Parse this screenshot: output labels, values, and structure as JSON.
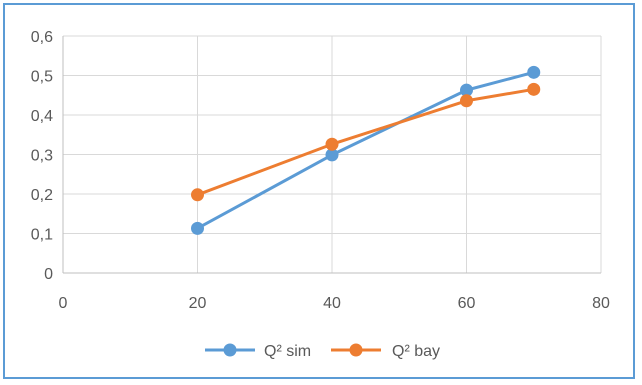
{
  "chart_data": {
    "type": "line",
    "title": "",
    "xlabel": "",
    "ylabel": "",
    "xlim": [
      0,
      80
    ],
    "ylim": [
      0,
      0.6
    ],
    "xticks": [
      "0",
      "20",
      "40",
      "60",
      "80"
    ],
    "yticks": [
      "0",
      "0,1",
      "0,2",
      "0,3",
      "0,4",
      "0,5",
      "0,6"
    ],
    "grid": true,
    "legend_position": "bottom",
    "series": [
      {
        "name": "Q² sim",
        "color": "#5b9bd5",
        "points": [
          [
            20,
            0.113
          ],
          [
            40,
            0.299
          ],
          [
            60,
            0.463
          ],
          [
            70,
            0.508
          ]
        ]
      },
      {
        "name": "Q² bay",
        "color": "#ed7d31",
        "points": [
          [
            20,
            0.198
          ],
          [
            40,
            0.326
          ],
          [
            60,
            0.436
          ],
          [
            70,
            0.465
          ]
        ]
      }
    ]
  }
}
